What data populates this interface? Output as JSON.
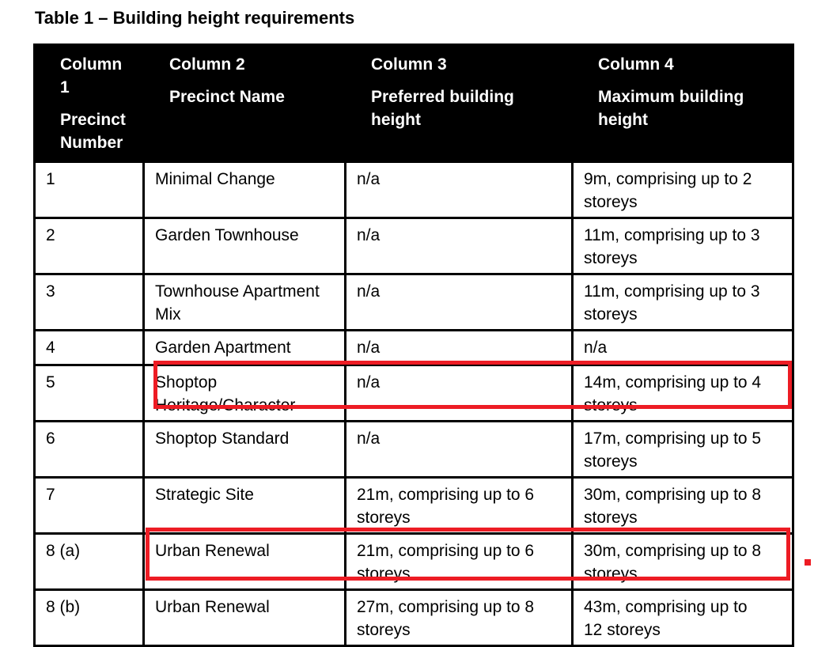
{
  "page": {
    "title": "Table 1 – Building height requirements"
  },
  "table": {
    "columns": [
      {
        "label": "Column\n1",
        "sublabel": "Precinct\nNumber"
      },
      {
        "label": "Column 2",
        "sublabel": "Precinct Name"
      },
      {
        "label": "Column 3",
        "sublabel": "Preferred building\nheight"
      },
      {
        "label": "Column 4",
        "sublabel": "Maximum building\nheight"
      }
    ],
    "rows": [
      {
        "precinct_number": "1",
        "precinct_name": "Minimal Change",
        "preferred_height": "n/a",
        "maximum_height": "9m, comprising up to 2\nstoreys",
        "highlighted": false
      },
      {
        "precinct_number": "2",
        "precinct_name": "Garden Townhouse",
        "preferred_height": "n/a",
        "maximum_height": "11m, comprising up to 3\nstoreys",
        "highlighted": false
      },
      {
        "precinct_number": "3",
        "precinct_name": "Townhouse Apartment\nMix",
        "preferred_height": "n/a",
        "maximum_height": "11m, comprising up to 3\nstoreys",
        "highlighted": false
      },
      {
        "precinct_number": "4",
        "precinct_name": "Garden Apartment",
        "preferred_height": "n/a",
        "maximum_height": "n/a",
        "highlighted": false
      },
      {
        "precinct_number": "5",
        "precinct_name": "Shoptop\nHeritage/Character",
        "preferred_height": "n/a",
        "maximum_height": "14m, comprising up to 4\nstoreys",
        "highlighted": true
      },
      {
        "precinct_number": "6",
        "precinct_name": "Shoptop Standard",
        "preferred_height": "n/a",
        "maximum_height": "17m, comprising up to 5\nstoreys",
        "highlighted": false
      },
      {
        "precinct_number": "7",
        "precinct_name": "Strategic Site",
        "preferred_height": "21m, comprising up to 6\nstoreys",
        "maximum_height": "30m, comprising up to 8\nstoreys",
        "highlighted": false
      },
      {
        "precinct_number": "8 (a)",
        "precinct_name": "Urban Renewal",
        "preferred_height": "21m, comprising up to 6\nstoreys",
        "maximum_height": "30m, comprising up to 8\nstoreys",
        "highlighted": true
      },
      {
        "precinct_number": "8 (b)",
        "precinct_name": "Urban Renewal",
        "preferred_height": "27m, comprising up to 8\nstoreys",
        "maximum_height": "43m, comprising up to\n12 storeys",
        "highlighted": false
      }
    ]
  },
  "annotations": {
    "highlight_color": "#ed1c24",
    "highlighted_rows": [
      "5",
      "8 (a)"
    ],
    "marker": "small red square right of row 8 (a)"
  },
  "colors": {
    "header_background": "#000000",
    "header_text": "#ffffff",
    "border": "#000000",
    "body_text": "#000000"
  }
}
